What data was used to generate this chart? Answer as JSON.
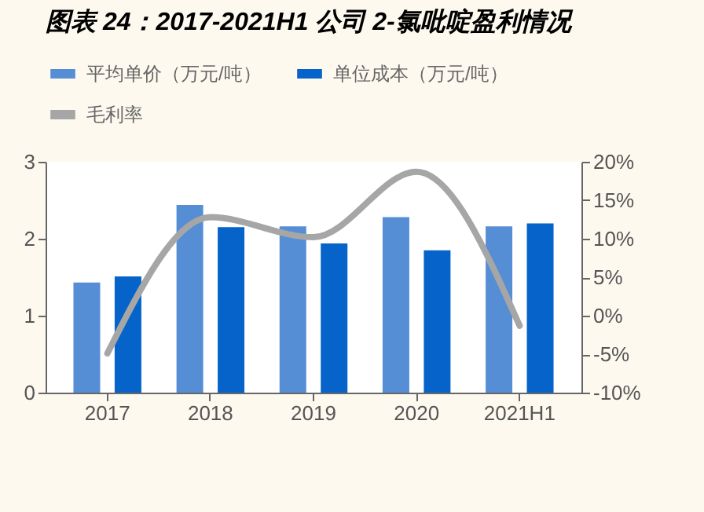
{
  "chart_data": {
    "type": "bar",
    "title": "图表 24：2017-2021H1 公司 2-氯吡啶盈利情况",
    "categories": [
      "2017",
      "2018",
      "2019",
      "2020",
      "2021H1"
    ],
    "series": [
      {
        "name": "平均单价（万元/吨）",
        "color": "#558ed5",
        "values": [
          1.43,
          2.44,
          2.16,
          2.28,
          2.16
        ]
      },
      {
        "name": "单位成本（万元/吨）",
        "color": "#0563c9",
        "values": [
          1.51,
          2.15,
          1.94,
          1.85,
          2.2
        ]
      },
      {
        "name": "毛利率",
        "type": "line",
        "axis": "y2",
        "color": "#a6a6a6",
        "values": [
          -4.9,
          12.8,
          10.2,
          18.7,
          -1.3
        ]
      }
    ],
    "ylim": [
      0,
      3
    ],
    "yticks": [
      0,
      1,
      2,
      3
    ],
    "y2lim": [
      -10,
      20
    ],
    "y2ticks": [
      {
        "value": -10,
        "label": "-10%"
      },
      {
        "value": -5,
        "label": "-5%"
      },
      {
        "value": 0,
        "label": "0%"
      },
      {
        "value": 5,
        "label": "5%"
      },
      {
        "value": 10,
        "label": "10%"
      },
      {
        "value": 15,
        "label": "15%"
      },
      {
        "value": 20,
        "label": "20%"
      }
    ],
    "legend": "top",
    "grid": false
  }
}
